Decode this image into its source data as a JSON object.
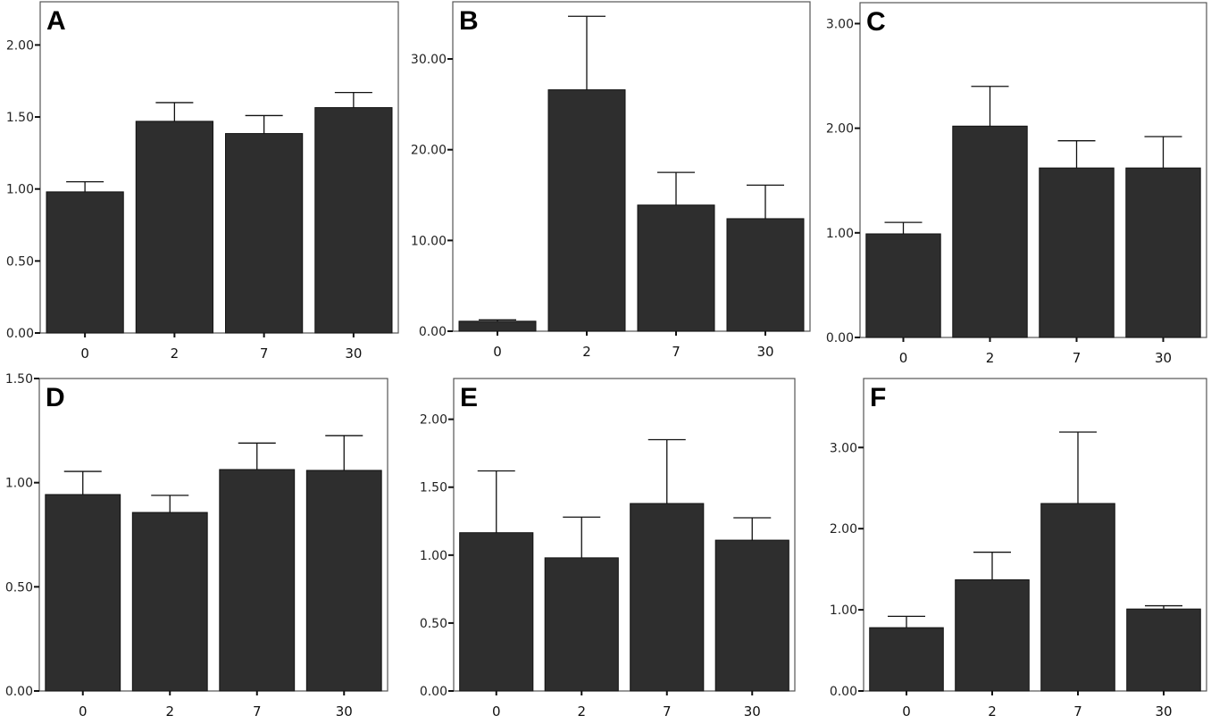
{
  "chart_data": [
    {
      "type": "bar",
      "panel": "A",
      "title": "",
      "xlabel": "",
      "ylabel": "",
      "categories": [
        "0",
        "2",
        "7",
        "30"
      ],
      "values": [
        0.98,
        1.47,
        1.385,
        1.565
      ],
      "error_upper": [
        1.05,
        1.6,
        1.51,
        1.67
      ],
      "yticks": [
        "0.00",
        "0.50",
        "1.00",
        "1.50",
        "2.00"
      ],
      "ylim": [
        0,
        2.3
      ],
      "grid": false,
      "bar_color": "#2e2e2e"
    },
    {
      "type": "bar",
      "panel": "B",
      "title": "",
      "xlabel": "",
      "ylabel": "",
      "categories": [
        "0",
        "2",
        "7",
        "30"
      ],
      "values": [
        1.1,
        26.6,
        13.9,
        12.4
      ],
      "error_upper": [
        1.25,
        34.7,
        17.5,
        16.1
      ],
      "yticks": [
        "0.00",
        "10.00",
        "20.00",
        "30.00"
      ],
      "ylim": [
        0,
        36.3
      ],
      "grid": false,
      "bar_color": "#2e2e2e"
    },
    {
      "type": "bar",
      "panel": "C",
      "title": "",
      "xlabel": "",
      "ylabel": "",
      "categories": [
        "0",
        "2",
        "7",
        "30"
      ],
      "values": [
        0.99,
        2.02,
        1.62,
        1.62
      ],
      "error_upper": [
        1.1,
        2.4,
        1.88,
        1.92
      ],
      "yticks": [
        "0.00",
        "1.00",
        "2.00",
        "3.00"
      ],
      "ylim": [
        0,
        3.2
      ],
      "grid": false,
      "bar_color": "#2e2e2e"
    },
    {
      "type": "bar",
      "panel": "D",
      "title": "",
      "xlabel": "",
      "ylabel": "",
      "categories": [
        "0",
        "2",
        "7",
        "30"
      ],
      "values": [
        0.943,
        0.857,
        1.063,
        1.059
      ],
      "error_upper": [
        1.054,
        0.939,
        1.19,
        1.226
      ],
      "yticks": [
        "0.00",
        "0.50",
        "1.00",
        "1.50"
      ],
      "ylim": [
        0,
        1.5
      ],
      "grid": false,
      "bar_color": "#2e2e2e"
    },
    {
      "type": "bar",
      "panel": "E",
      "title": "",
      "xlabel": "",
      "ylabel": "",
      "categories": [
        "0",
        "2",
        "7",
        "30"
      ],
      "values": [
        1.165,
        0.98,
        1.38,
        1.11
      ],
      "error_upper": [
        1.62,
        1.28,
        1.85,
        1.275
      ],
      "yticks": [
        "0.00",
        "0.50",
        "1.00",
        "1.50",
        "2.00"
      ],
      "ylim": [
        0,
        2.3
      ],
      "grid": false,
      "bar_color": "#2e2e2e"
    },
    {
      "type": "bar",
      "panel": "F",
      "title": "",
      "xlabel": "",
      "ylabel": "",
      "categories": [
        "0",
        "2",
        "7",
        "30"
      ],
      "values": [
        0.78,
        1.37,
        2.31,
        1.01
      ],
      "error_upper": [
        0.92,
        1.71,
        3.19,
        1.05
      ],
      "yticks": [
        "0.00",
        "1.00",
        "2.00",
        "3.00"
      ],
      "ylim": [
        0,
        3.85
      ],
      "grid": false,
      "bar_color": "#2e2e2e"
    }
  ]
}
